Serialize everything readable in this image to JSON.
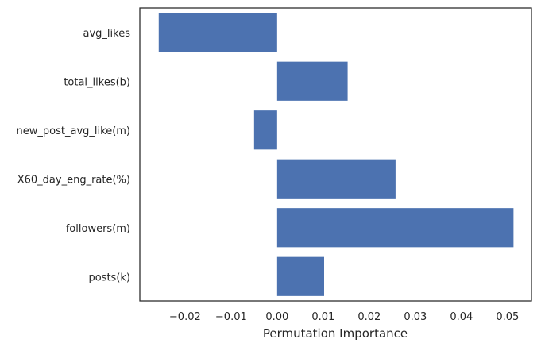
{
  "chart_data": {
    "type": "bar",
    "orientation": "horizontal",
    "categories": [
      "avg_likes",
      "total_likes(b)",
      "new_post_avg_like(m)",
      "X60_day_eng_rate(%)",
      "followers(m)",
      "posts(k)"
    ],
    "values": [
      -0.0257,
      0.0153,
      -0.005,
      0.0257,
      0.0513,
      0.0102
    ],
    "xlabel": "Permutation Importance",
    "ylabel": "",
    "title": "",
    "xlim": [
      -0.0298,
      0.0552
    ],
    "xticks": [
      -0.02,
      -0.01,
      0.0,
      0.01,
      0.02,
      0.03,
      0.04,
      0.05
    ],
    "xtick_labels": [
      "−0.02",
      "−0.01",
      "0.00",
      "0.01",
      "0.02",
      "0.03",
      "0.04",
      "0.05"
    ],
    "grid": false,
    "bar_color": "#4c72b0"
  }
}
